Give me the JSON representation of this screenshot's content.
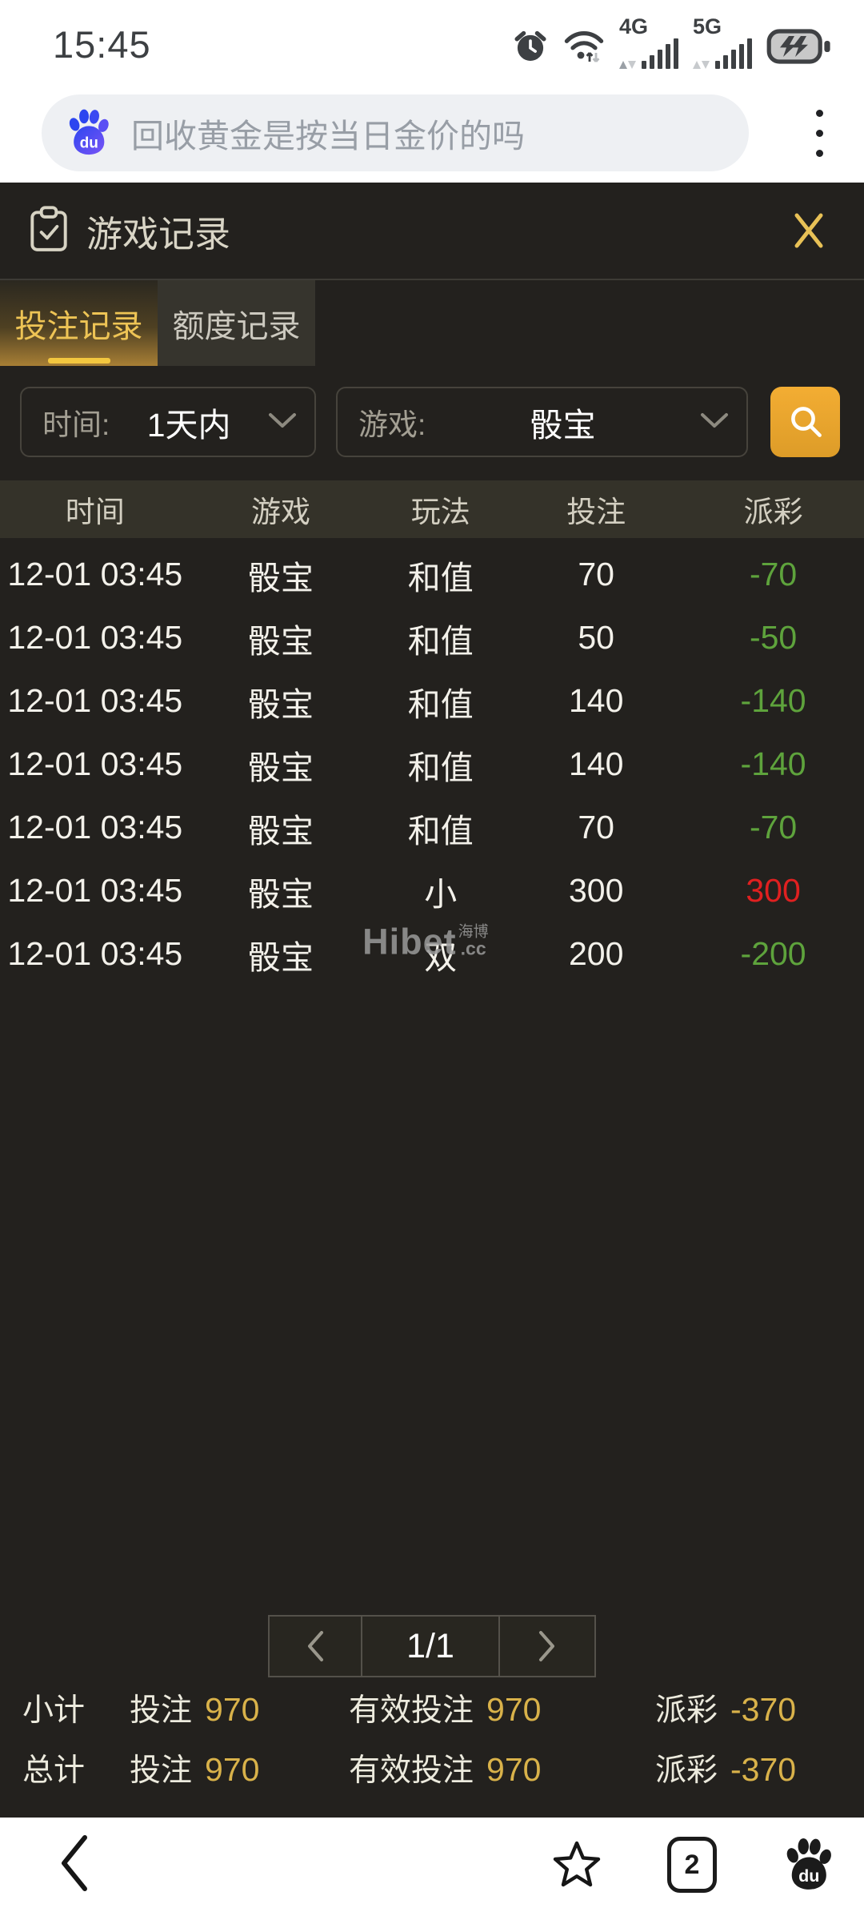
{
  "status_bar": {
    "time": "15:45",
    "net1": "4G",
    "net2": "5G"
  },
  "search": {
    "query": "回收黄金是按当日金价的吗"
  },
  "modal": {
    "title": "游戏记录",
    "tabs": [
      {
        "label": "投注记录"
      },
      {
        "label": "额度记录"
      }
    ],
    "filters": {
      "time_label": "时间:",
      "time_value": "1天内",
      "game_label": "游戏:",
      "game_value": "骰宝"
    },
    "table": {
      "headers": [
        "时间",
        "游戏",
        "玩法",
        "投注",
        "派彩"
      ],
      "rows": [
        {
          "time": "12-01 03:45",
          "game": "骰宝",
          "play": "和值",
          "bet": "70",
          "payout": "-70",
          "payout_color": "green"
        },
        {
          "time": "12-01 03:45",
          "game": "骰宝",
          "play": "和值",
          "bet": "50",
          "payout": "-50",
          "payout_color": "green"
        },
        {
          "time": "12-01 03:45",
          "game": "骰宝",
          "play": "和值",
          "bet": "140",
          "payout": "-140",
          "payout_color": "green"
        },
        {
          "time": "12-01 03:45",
          "game": "骰宝",
          "play": "和值",
          "bet": "140",
          "payout": "-140",
          "payout_color": "green"
        },
        {
          "time": "12-01 03:45",
          "game": "骰宝",
          "play": "和值",
          "bet": "70",
          "payout": "-70",
          "payout_color": "green"
        },
        {
          "time": "12-01 03:45",
          "game": "骰宝",
          "play": "小",
          "bet": "300",
          "payout": "300",
          "payout_color": "red"
        },
        {
          "time": "12-01 03:45",
          "game": "骰宝",
          "play": "双",
          "bet": "200",
          "payout": "-200",
          "payout_color": "green",
          "watermark": true
        }
      ]
    },
    "watermark": {
      "text": "Hibet",
      "cn": "海博",
      "suffix": ".cc"
    },
    "pagination": {
      "current": "1/1"
    },
    "summary": [
      {
        "label": "小计",
        "bet_label": "投注",
        "bet": "970",
        "valid_label": "有效投注",
        "valid": "970",
        "payout_label": "派彩",
        "payout": "-370"
      },
      {
        "label": "总计",
        "bet_label": "投注",
        "bet": "970",
        "valid_label": "有效投注",
        "valid": "970",
        "payout_label": "派彩",
        "payout": "-370"
      }
    ]
  },
  "bottom_nav": {
    "tab_count": "2"
  },
  "colors": {
    "accent_gold": "#eec455",
    "tab_underline": "#f3c73f",
    "win_red": "#e02020",
    "loss_green": "#5ea33c",
    "search_button_orange": "#eda62f",
    "summary_number_gold": "#d9b24a",
    "modal_background": "#23211e"
  }
}
